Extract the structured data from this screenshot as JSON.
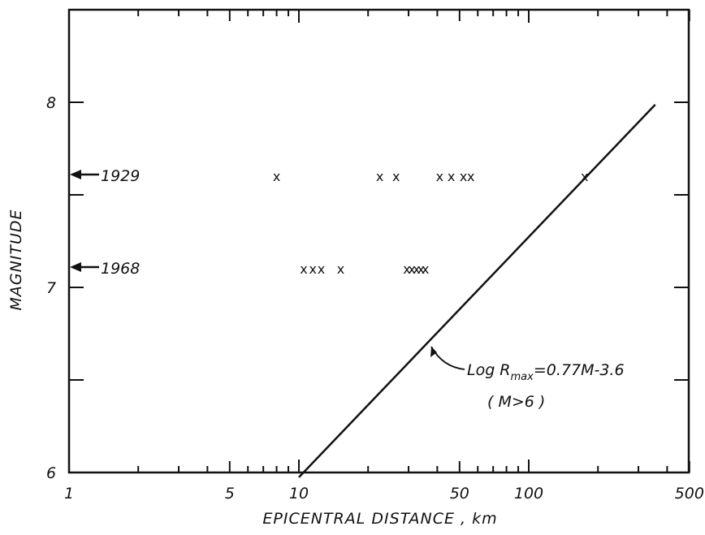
{
  "chart_data": {
    "type": "scatter",
    "xscale": "log",
    "xlabel": "EPICENTRAL DISTANCE , km",
    "ylabel": "MAGNITUDE",
    "xlim": [
      1,
      500
    ],
    "ylim": [
      6,
      8.5
    ],
    "xticks": [
      1,
      5,
      10,
      50,
      100,
      500
    ],
    "xtick_labels": [
      "1",
      "5",
      "10",
      "50",
      "100",
      "500"
    ],
    "yticks": [
      6,
      7,
      8
    ],
    "ytick_labels": [
      "6",
      "7",
      "8"
    ],
    "grid": false,
    "series": [
      {
        "marker": "x",
        "points": [
          [
            8,
            7.6
          ],
          [
            22.5,
            7.6
          ],
          [
            26.5,
            7.6
          ],
          [
            41,
            7.6
          ],
          [
            46,
            7.6
          ],
          [
            52,
            7.6
          ],
          [
            56,
            7.6
          ],
          [
            175,
            7.6
          ],
          [
            10.5,
            7.1
          ],
          [
            11.5,
            7.1
          ],
          [
            12.5,
            7.1
          ],
          [
            15.2,
            7.1
          ],
          [
            29.5,
            7.1
          ],
          [
            31,
            7.1
          ],
          [
            32.5,
            7.1
          ],
          [
            34,
            7.1
          ],
          [
            35.5,
            7.1
          ]
        ]
      }
    ],
    "line": {
      "equation_label": "Log R",
      "equation_subscript": "max",
      "equation_rest": "=0.77M-3.6",
      "condition": "( M>6 )",
      "slope": 0.77,
      "intercept": -3.6,
      "x_range": [
        10,
        355
      ]
    },
    "annotations": [
      {
        "text": "1929",
        "y": 7.6
      },
      {
        "text": "1968",
        "y": 7.1
      }
    ]
  }
}
